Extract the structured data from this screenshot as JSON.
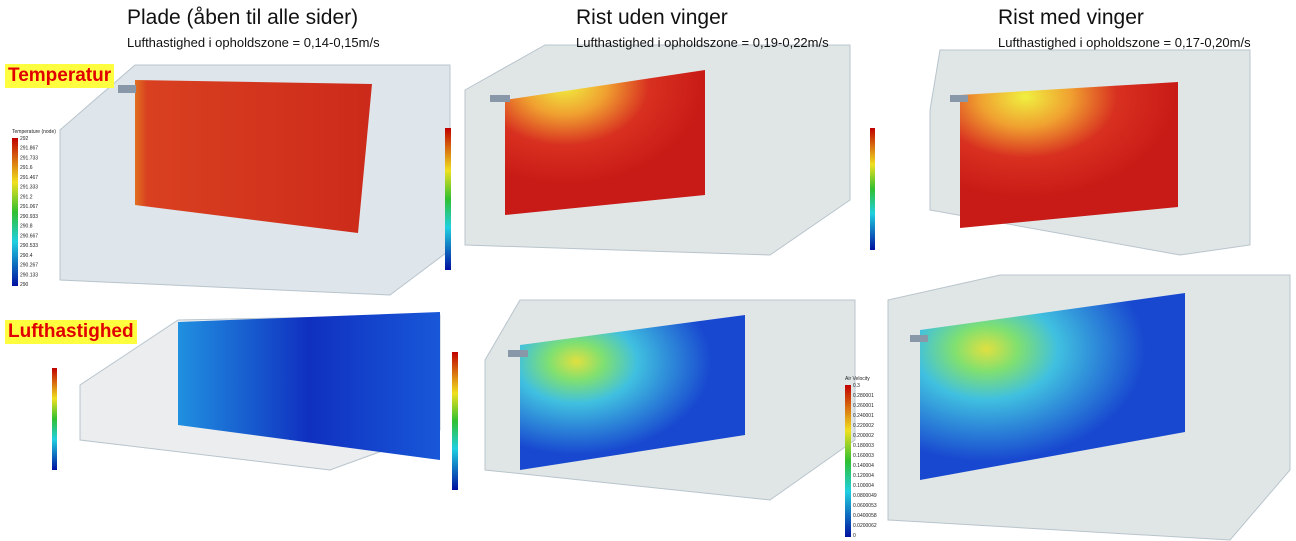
{
  "columns": [
    {
      "title": "Plade (åben til alle sider)",
      "subtitle": "Lufthastighed i opholdszone = 0,14-0,15m/s"
    },
    {
      "title": "Rist uden vinger",
      "subtitle": "Lufthastighed i opholdszone = 0,19-0,22m/s"
    },
    {
      "title": "Rist med vinger",
      "subtitle": "Lufthastighed i opholdszone = 0,17-0,20m/s"
    }
  ],
  "rows": [
    {
      "label": "Temperatur"
    },
    {
      "label": "Lufthastighed"
    }
  ],
  "colorbars": [
    {
      "title": "Temperature (node)",
      "ticks": [
        "292",
        "291.867",
        "291.733",
        "291.6",
        "291.467",
        "291.333",
        "291.2",
        "291.067",
        "290.933",
        "290.8",
        "290.667",
        "290.533",
        "290.4",
        "290.267",
        "290.133",
        "290"
      ]
    },
    {
      "title": "Air Velocity",
      "ticks": [
        "0.3",
        "0.280001",
        "0.260001",
        "0.240001",
        "0.220002",
        "0.200002",
        "0.180003",
        "0.160003",
        "0.140004",
        "0.120004",
        "0.100004",
        "0.0800049",
        "0.0600053",
        "0.0400058",
        "0.0200062",
        "0"
      ]
    }
  ]
}
